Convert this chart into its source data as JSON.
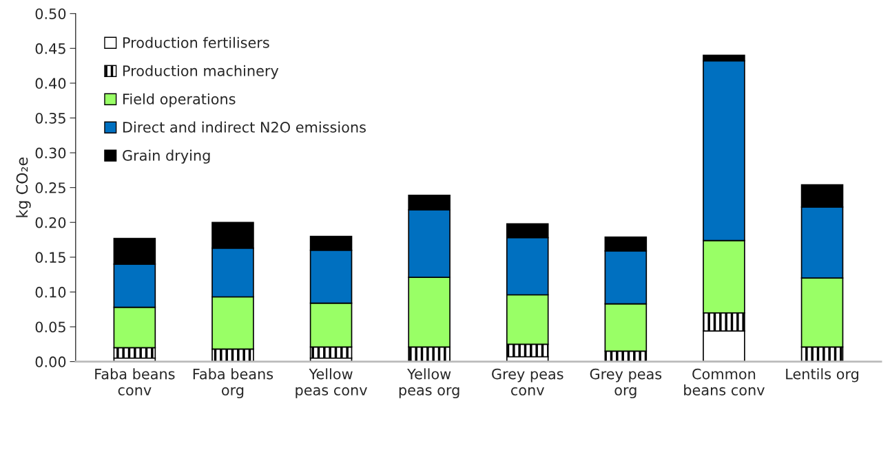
{
  "chart_data": {
    "type": "bar",
    "stacked": true,
    "ylabel": "kg CO₂e",
    "categories": [
      "Faba beans\nconv",
      "Faba beans\norg",
      "Yellow\npeas conv",
      "Yellow\npeas org",
      "Grey peas\nconv",
      "Grey peas\norg",
      "Common\nbeans conv",
      "Lentils org"
    ],
    "series": [
      {
        "name": "Production fertilisers",
        "color": "#ffffff",
        "values": [
          0.005,
          0,
          0.005,
          0,
          0.007,
          0,
          0.044,
          0
        ]
      },
      {
        "name": "Production machinery",
        "color": "#000000",
        "values": [
          0.015,
          0.018,
          0.016,
          0.021,
          0.018,
          0.015,
          0.026,
          0.021
        ]
      },
      {
        "name": "Field operations",
        "color": "#99ff66",
        "values": [
          0.058,
          0.075,
          0.063,
          0.1,
          0.071,
          0.068,
          0.104,
          0.099
        ]
      },
      {
        "name": "Direct and indirect N2O emissions",
        "color": "#0070c0",
        "values": [
          0.062,
          0.07,
          0.076,
          0.097,
          0.082,
          0.076,
          0.258,
          0.102
        ]
      },
      {
        "name": "Grain drying",
        "color": "#000000",
        "values": [
          0.037,
          0.037,
          0.02,
          0.021,
          0.02,
          0.02,
          0.008,
          0.032
        ]
      }
    ],
    "ylim": [
      0,
      0.5
    ],
    "yticks": [
      {
        "value": 0,
        "label": "0.00"
      },
      {
        "value": 0.05,
        "label": "0.05"
      },
      {
        "value": 0.1,
        "label": "0.10"
      },
      {
        "value": 0.15,
        "label": "0.15"
      },
      {
        "value": 0.2,
        "label": "0.20"
      },
      {
        "value": 0.25,
        "label": "0.25"
      },
      {
        "value": 0.3,
        "label": "0.30"
      },
      {
        "value": 0.35,
        "label": "0.35"
      },
      {
        "value": 0.4,
        "label": "0.40"
      },
      {
        "value": 0.45,
        "label": "0.45"
      },
      {
        "value": 0.5,
        "label": "0.50"
      }
    ],
    "grid": false,
    "legend": "top left"
  }
}
